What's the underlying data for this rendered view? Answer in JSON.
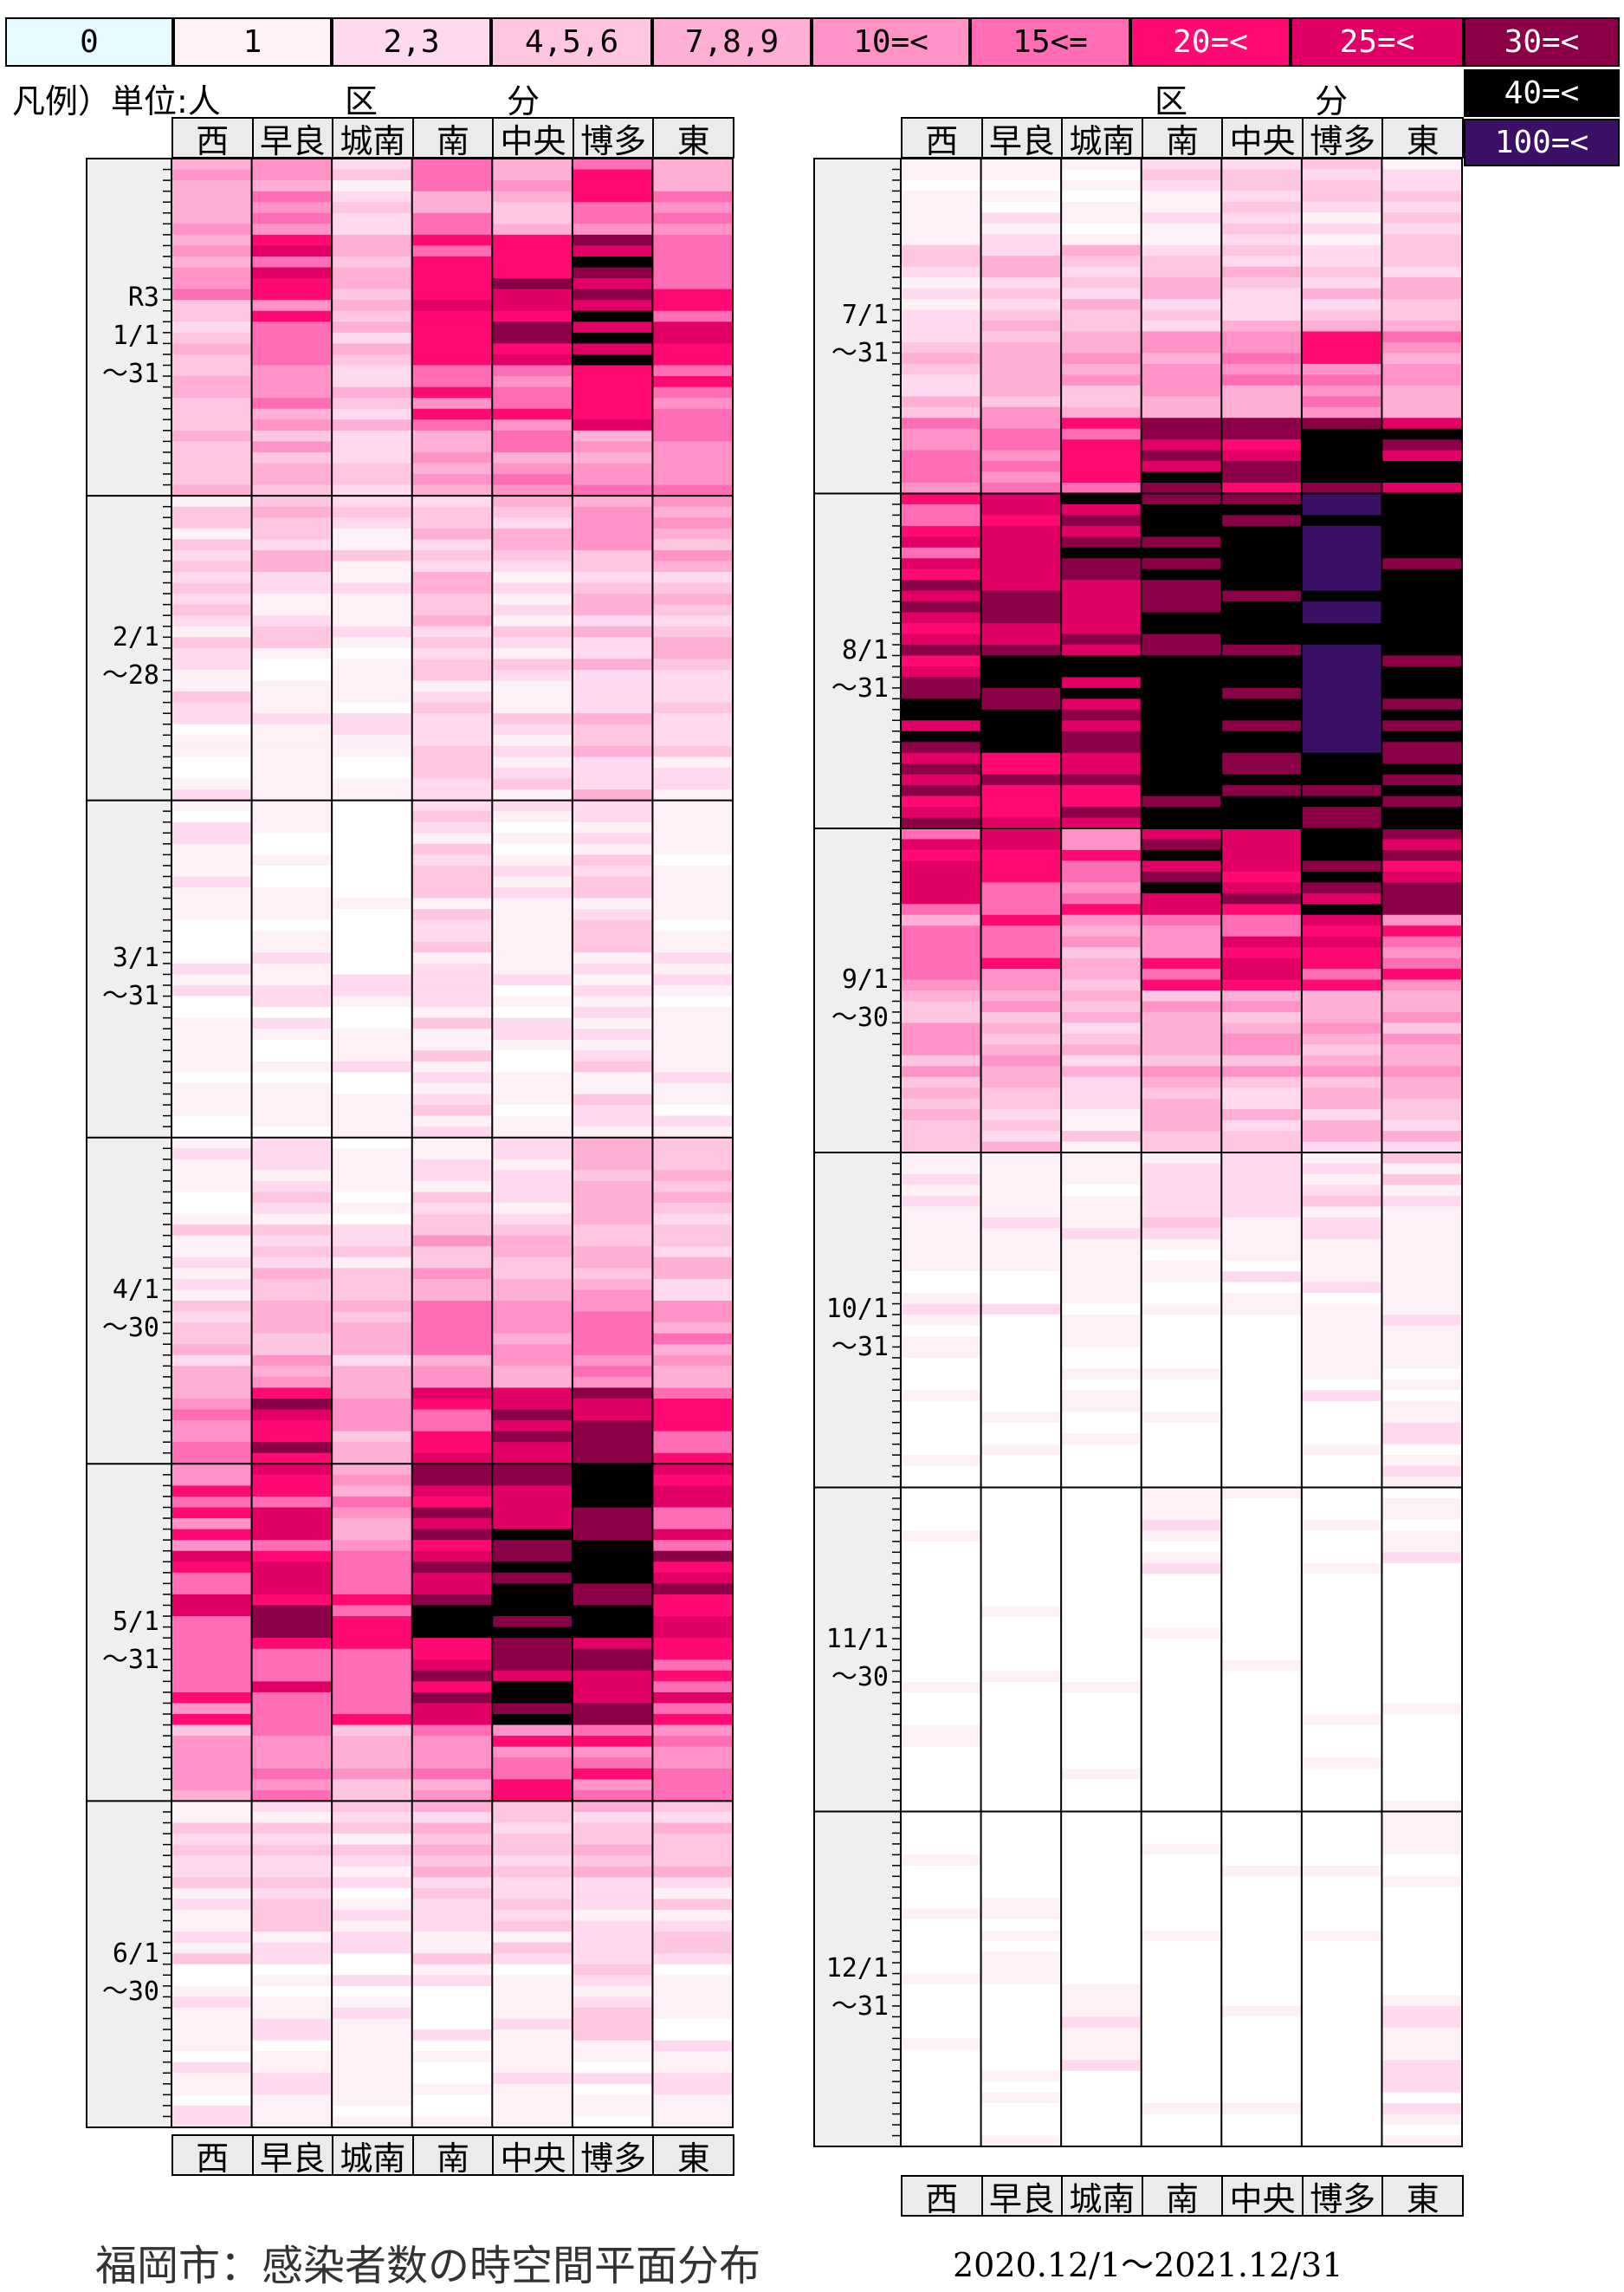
{
  "legend": {
    "labels": [
      "0",
      "1",
      "2,3",
      "4,5,6",
      "7,8,9",
      "10=<",
      "15<=",
      "20=<",
      "25=<",
      "30=<",
      "40=<",
      "100=<"
    ],
    "colors": [
      "#e6fbff",
      "#fdf0f7",
      "#ffd9ef",
      "#ffc6e2",
      "#ffafd6",
      "#ff93c7",
      "#ff6eb4",
      "#ff0a73",
      "#e30066",
      "#8b0046",
      "#000000",
      "#3b1168"
    ],
    "text_colors": [
      "#000",
      "#000",
      "#000",
      "#000",
      "#000",
      "#000",
      "#000",
      "#fff",
      "#fff",
      "#fff",
      "#fff",
      "#fff"
    ]
  },
  "header": {
    "unit_label": "凡例）単位:人",
    "ku_left": "区",
    "bun_left": "分",
    "ku_right": "区",
    "bun_right": "分"
  },
  "districts": [
    "西",
    "早良",
    "城南",
    "南",
    "中央",
    "博多",
    "東"
  ],
  "left_months": [
    {
      "label": "R3\n1/1\n～31",
      "days": 31
    },
    {
      "label": "2/1\n～28",
      "days": 28
    },
    {
      "label": "3/1\n～31",
      "days": 31
    },
    {
      "label": "4/1\n～30",
      "days": 30
    },
    {
      "label": "5/1\n～31",
      "days": 31
    },
    {
      "label": "6/1\n～30",
      "days": 30
    }
  ],
  "right_months": [
    {
      "label": "7/1\n～31",
      "days": 31
    },
    {
      "label": "8/1\n～31",
      "days": 31
    },
    {
      "label": "9/1\n～30",
      "days": 30
    },
    {
      "label": "10/1\n～31",
      "days": 31
    },
    {
      "label": "11/1\n～30",
      "days": 30
    },
    {
      "label": "12/1\n～31",
      "days": 31
    }
  ],
  "title": "福岡市：感染者数の時空間平面分布",
  "range": "2020.12/1～2021.12/31",
  "chart_data": {
    "type": "heatmap",
    "note_scale": "cell value = legend class index 0..11",
    "x": [
      "西",
      "早良",
      "城南",
      "南",
      "中央",
      "博多",
      "東"
    ],
    "monthly_class_profile": {
      "2021-01": [
        [
          4,
          5,
          2,
          5,
          4,
          6,
          5
        ],
        [
          5,
          7,
          4,
          7,
          8,
          9,
          6
        ],
        [
          3,
          6,
          3,
          7,
          8,
          9,
          7
        ],
        [
          4,
          5,
          3,
          6,
          6,
          7,
          6
        ],
        [
          3,
          4,
          3,
          4,
          5,
          5,
          5
        ]
      ],
      "2021-02": [
        [
          2,
          3,
          2,
          3,
          3,
          4,
          4
        ],
        [
          2,
          2,
          1,
          3,
          2,
          3,
          3
        ],
        [
          2,
          1,
          1,
          2,
          2,
          3,
          3
        ],
        [
          1,
          1,
          1,
          2,
          2,
          3,
          2
        ]
      ],
      "2021-03": [
        [
          1,
          1,
          0,
          2,
          1,
          2,
          1
        ],
        [
          1,
          1,
          0,
          2,
          1,
          2,
          1
        ],
        [
          1,
          1,
          1,
          2,
          1,
          2,
          1
        ],
        [
          1,
          1,
          1,
          2,
          1,
          2,
          1
        ]
      ],
      "2021-04": [
        [
          1,
          2,
          1,
          2,
          2,
          3,
          3
        ],
        [
          2,
          3,
          2,
          4,
          3,
          4,
          3
        ],
        [
          3,
          4,
          3,
          5,
          5,
          6,
          5
        ],
        [
          5,
          8,
          4,
          7,
          9,
          9,
          7
        ]
      ],
      "2021-05": [
        [
          6,
          7,
          5,
          8,
          9,
          10,
          7
        ],
        [
          7,
          8,
          6,
          9,
          10,
          10,
          8
        ],
        [
          6,
          7,
          6,
          8,
          9,
          9,
          7
        ],
        [
          4,
          5,
          4,
          5,
          6,
          6,
          5
        ]
      ],
      "2021-06": [
        [
          2,
          2,
          2,
          3,
          3,
          3,
          3
        ],
        [
          2,
          2,
          1,
          2,
          2,
          2,
          2
        ],
        [
          1,
          1,
          1,
          1,
          1,
          2,
          1
        ],
        [
          1,
          1,
          1,
          1,
          1,
          1,
          1
        ]
      ],
      "2021-07": [
        [
          1,
          1,
          1,
          2,
          2,
          2,
          2
        ],
        [
          2,
          3,
          3,
          3,
          3,
          3,
          3
        ],
        [
          3,
          4,
          4,
          5,
          5,
          6,
          5
        ],
        [
          5,
          6,
          6,
          9,
          8,
          10,
          9
        ]
      ],
      "2021-08": [
        [
          7,
          8,
          9,
          10,
          10,
          11,
          10
        ],
        [
          8,
          9,
          9,
          10,
          10,
          11,
          10
        ],
        [
          9,
          10,
          9,
          10,
          10,
          11,
          10
        ],
        [
          8,
          8,
          8,
          10,
          10,
          10,
          10
        ]
      ],
      "2021-09": [
        [
          7,
          7,
          6,
          9,
          8,
          9,
          8
        ],
        [
          5,
          6,
          4,
          6,
          7,
          7,
          6
        ],
        [
          4,
          4,
          3,
          4,
          4,
          4,
          4
        ],
        [
          3,
          3,
          2,
          3,
          3,
          3,
          3
        ]
      ],
      "2021-10": [
        [
          1,
          1,
          1,
          2,
          2,
          2,
          2
        ],
        [
          1,
          1,
          1,
          1,
          1,
          1,
          1
        ],
        [
          0,
          0,
          1,
          0,
          0,
          1,
          1
        ],
        [
          0,
          0,
          0,
          0,
          0,
          0,
          1
        ]
      ],
      "2021-11": [
        [
          0,
          0,
          0,
          1,
          0,
          0,
          1
        ],
        [
          0,
          0,
          0,
          0,
          0,
          0,
          0
        ],
        [
          0,
          0,
          0,
          0,
          0,
          0,
          0
        ],
        [
          0,
          0,
          0,
          0,
          0,
          0,
          0
        ]
      ],
      "2021-12": [
        [
          0,
          0,
          0,
          0,
          0,
          0,
          1
        ],
        [
          0,
          1,
          0,
          0,
          0,
          0,
          0
        ],
        [
          0,
          0,
          1,
          0,
          0,
          0,
          1
        ],
        [
          0,
          0,
          0,
          0,
          0,
          0,
          1
        ]
      ]
    }
  }
}
